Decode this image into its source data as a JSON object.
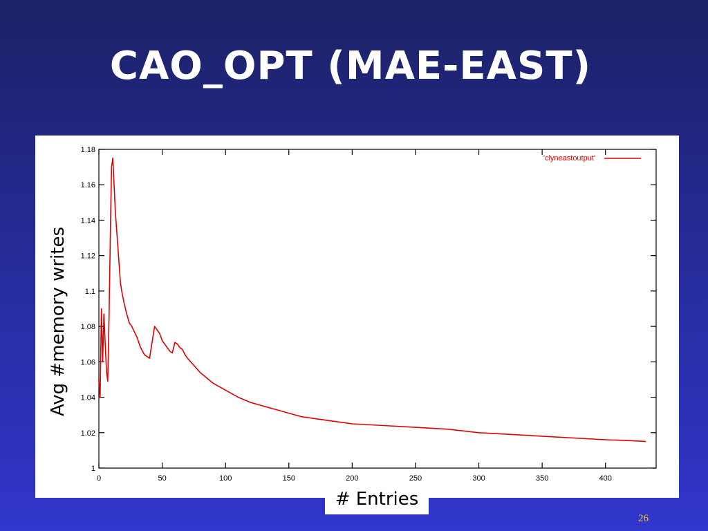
{
  "slide": {
    "title": "CAO_OPT (MAE-EAST)",
    "page_number": "26"
  },
  "chart_data": {
    "type": "line",
    "xlabel": "# Entries",
    "ylabel": "Avg #memory writes",
    "xlim": [
      0,
      440
    ],
    "ylim": [
      1.0,
      1.18
    ],
    "x_ticks": [
      0,
      50,
      100,
      150,
      200,
      250,
      300,
      350,
      400
    ],
    "x_tick_labels": [
      "0",
      "50",
      "100",
      "150",
      "200",
      "250",
      "300",
      "350",
      "400"
    ],
    "y_ticks": [
      1.0,
      1.02,
      1.04,
      1.06,
      1.08,
      1.1,
      1.12,
      1.14,
      1.16,
      1.18
    ],
    "y_tick_labels": [
      "1",
      "1.02",
      "1.04",
      "1.06",
      "1.08",
      "1.1",
      "1.12",
      "1.14",
      "1.16",
      "1.18"
    ],
    "grid": false,
    "legend_position": "top-right",
    "series": [
      {
        "name": "'clyneastoutput'",
        "color": "#e00000",
        "x": [
          0,
          1,
          2,
          3,
          4,
          5,
          6,
          7,
          8,
          9,
          10,
          11,
          12,
          13,
          14,
          15,
          16,
          17,
          18,
          20,
          22,
          24,
          26,
          28,
          30,
          33,
          36,
          40,
          44,
          48,
          50,
          52,
          54,
          56,
          58,
          60,
          62,
          64,
          66,
          68,
          70,
          75,
          80,
          85,
          90,
          95,
          100,
          110,
          120,
          130,
          140,
          150,
          160,
          170,
          180,
          190,
          200,
          225,
          250,
          275,
          300,
          325,
          350,
          375,
          400,
          420,
          432
        ],
        "y": [
          1.05,
          1.04,
          1.09,
          1.06,
          1.087,
          1.07,
          1.055,
          1.049,
          1.085,
          1.13,
          1.17,
          1.175,
          1.16,
          1.145,
          1.135,
          1.125,
          1.115,
          1.105,
          1.1,
          1.093,
          1.087,
          1.082,
          1.08,
          1.077,
          1.074,
          1.068,
          1.064,
          1.062,
          1.08,
          1.076,
          1.072,
          1.07,
          1.068,
          1.066,
          1.065,
          1.071,
          1.07,
          1.068,
          1.067,
          1.064,
          1.062,
          1.058,
          1.054,
          1.051,
          1.048,
          1.046,
          1.044,
          1.04,
          1.037,
          1.035,
          1.033,
          1.031,
          1.029,
          1.028,
          1.027,
          1.026,
          1.025,
          1.024,
          1.023,
          1.022,
          1.02,
          1.019,
          1.018,
          1.017,
          1.016,
          1.0155,
          1.015
        ]
      }
    ]
  }
}
